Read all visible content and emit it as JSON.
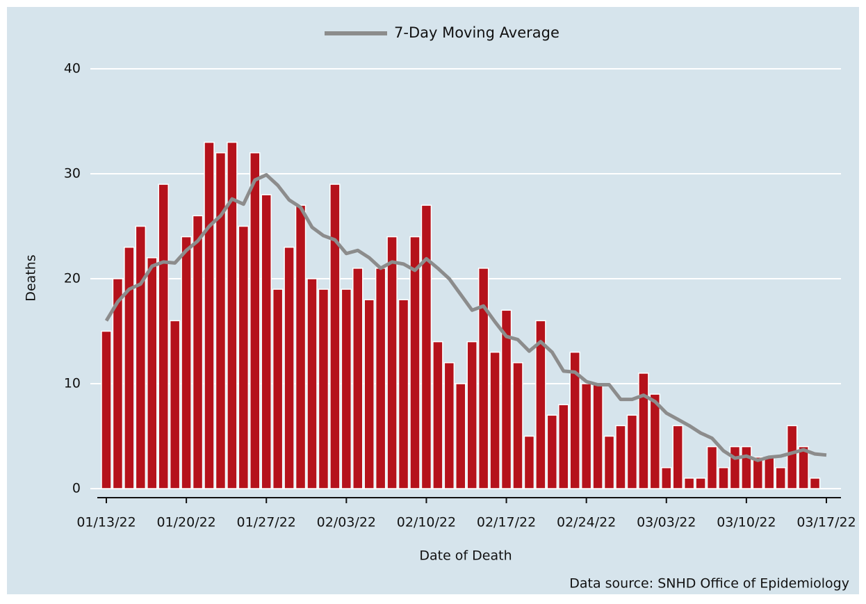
{
  "chart_data": {
    "type": "bar",
    "x_label": "Date of Death",
    "y_label": "Deaths",
    "source": "Data source: SNHD Office of Epidemiology",
    "categories": [
      "01/13/22",
      null,
      null,
      null,
      null,
      null,
      null,
      "01/20/22",
      null,
      null,
      null,
      null,
      null,
      null,
      "01/27/22",
      null,
      null,
      null,
      null,
      null,
      null,
      "02/03/22",
      null,
      null,
      null,
      null,
      null,
      null,
      "02/10/22",
      null,
      null,
      null,
      null,
      null,
      null,
      "02/17/22",
      null,
      null,
      null,
      null,
      null,
      null,
      "02/24/22",
      null,
      null,
      null,
      null,
      null,
      null,
      "03/03/22",
      null,
      null,
      null,
      null,
      null,
      null,
      "03/10/22",
      null,
      null,
      null,
      null,
      null,
      null,
      "03/17/22"
    ],
    "series": [
      {
        "type": "bar",
        "color": "#b5121b",
        "values": [
          15,
          20,
          23,
          25,
          22,
          29,
          16,
          24,
          26,
          33,
          32,
          33,
          25,
          32,
          28,
          19,
          23,
          27,
          20,
          19,
          29,
          19,
          21,
          18,
          21,
          24,
          18,
          24,
          27,
          14,
          12,
          10,
          14,
          21,
          13,
          17,
          12,
          5,
          16,
          7,
          8,
          13,
          10,
          10,
          5,
          6,
          7,
          11,
          9,
          2,
          6,
          1,
          1,
          4,
          2,
          4,
          4,
          3,
          3,
          2,
          6,
          4,
          1,
          0
        ]
      },
      {
        "type": "line",
        "name": "7-Day Moving Average",
        "color": "#8c8c8c",
        "values": [
          16,
          17.8,
          19,
          19.5,
          21.2,
          21.6,
          21.5,
          22.7,
          23.6,
          25,
          26,
          27.6,
          27.1,
          29.4,
          29.9,
          28.9,
          27.5,
          26.8,
          24.9,
          24.1,
          23.7,
          22.4,
          22.7,
          22,
          21,
          21.6,
          21.4,
          20.8,
          21.9,
          21,
          20,
          18.5,
          17,
          17.4,
          15.9,
          14.5,
          14.2,
          13.1,
          14,
          13,
          11.2,
          11.1,
          10.2,
          9.9,
          9.9,
          8.5,
          8.5,
          8.9,
          8.3,
          7.2,
          6.6,
          6,
          5.3,
          4.8,
          3.6,
          2.9,
          3.1,
          2.7,
          3,
          3.1,
          3.4,
          3.7,
          3.3,
          3.2
        ]
      }
    ],
    "ylim": [
      0,
      40
    ],
    "yticks": [
      0,
      10,
      20,
      30,
      40
    ],
    "grid": true,
    "legend": "top"
  }
}
